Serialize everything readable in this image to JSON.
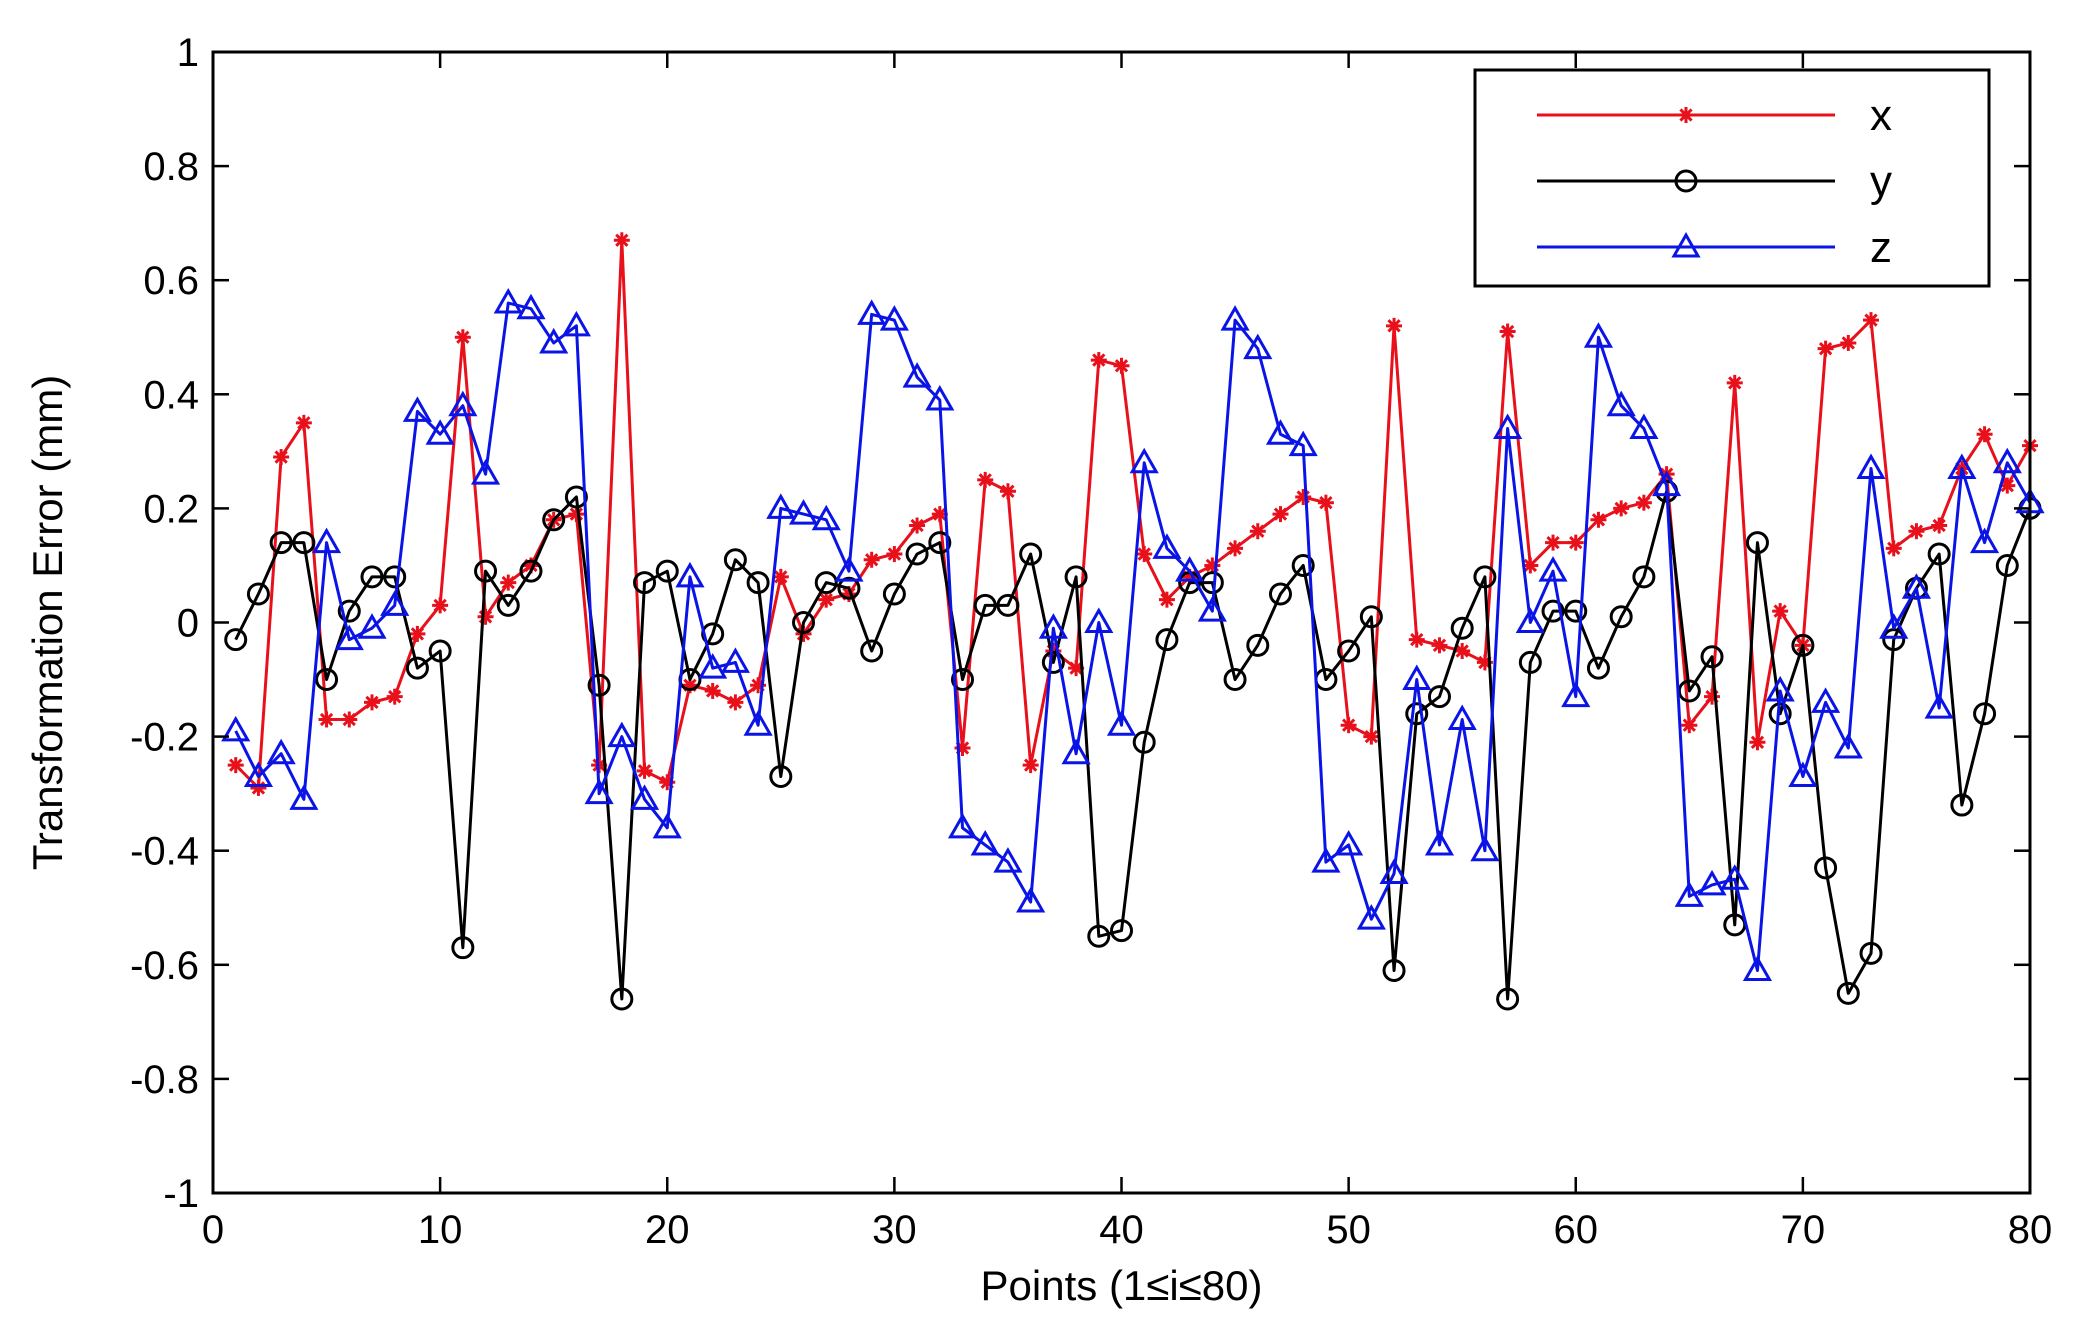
{
  "chart_data": {
    "type": "line",
    "title": "",
    "xlabel": "Points (1≤i≤80)",
    "ylabel": "Transformation Error (mm)",
    "xlim": [
      0,
      80
    ],
    "ylim": [
      -1,
      1
    ],
    "xticks": [
      0,
      10,
      20,
      30,
      40,
      50,
      60,
      70,
      80
    ],
    "yticks": [
      -1,
      -0.8,
      -0.6,
      -0.4,
      -0.2,
      0,
      0.2,
      0.4,
      0.6,
      0.8,
      1
    ],
    "xtick_labels": [
      "0",
      "10",
      "20",
      "30",
      "40",
      "50",
      "60",
      "70",
      "80"
    ],
    "ytick_labels": [
      "-1",
      "-0.8",
      "-0.6",
      "-0.4",
      "-0.2",
      "0",
      "0.2",
      "0.4",
      "0.6",
      "0.8",
      "1"
    ],
    "grid": false,
    "legend_position": "top-right",
    "series": [
      {
        "name": "x",
        "color": "#e8101a",
        "marker": "asterisk",
        "x": [
          1,
          2,
          3,
          4,
          5,
          6,
          7,
          8,
          9,
          10,
          11,
          12,
          13,
          14,
          15,
          16,
          17,
          18,
          19,
          20,
          21,
          22,
          23,
          24,
          25,
          26,
          27,
          28,
          29,
          30,
          31,
          32,
          33,
          34,
          35,
          36,
          37,
          38,
          39,
          40,
          41,
          42,
          43,
          44,
          45,
          46,
          47,
          48,
          49,
          50,
          51,
          52,
          53,
          54,
          55,
          56,
          57,
          58,
          59,
          60,
          61,
          62,
          63,
          64,
          65,
          66,
          67,
          68,
          69,
          70,
          71,
          72,
          73,
          74,
          75,
          76,
          77,
          78,
          79,
          80
        ],
        "values": [
          -0.25,
          -0.29,
          0.29,
          0.35,
          -0.17,
          -0.17,
          -0.14,
          -0.13,
          -0.02,
          0.03,
          0.5,
          0.01,
          0.07,
          0.1,
          0.18,
          0.19,
          -0.25,
          0.67,
          -0.26,
          -0.28,
          -0.11,
          -0.12,
          -0.14,
          -0.11,
          0.08,
          -0.02,
          0.04,
          0.05,
          0.11,
          0.12,
          0.17,
          0.19,
          -0.22,
          0.25,
          0.23,
          -0.25,
          -0.05,
          -0.08,
          0.46,
          0.45,
          0.12,
          0.04,
          0.08,
          0.1,
          0.13,
          0.16,
          0.19,
          0.22,
          0.21,
          -0.18,
          -0.2,
          0.52,
          -0.03,
          -0.04,
          -0.05,
          -0.07,
          0.51,
          0.1,
          0.14,
          0.14,
          0.18,
          0.2,
          0.21,
          0.26,
          -0.18,
          -0.13,
          0.42,
          -0.21,
          0.02,
          -0.04,
          0.48,
          0.49,
          0.53,
          0.13,
          0.16,
          0.17,
          0.27,
          0.33,
          0.24,
          0.31
        ]
      },
      {
        "name": "y",
        "color": "#000000",
        "marker": "circle",
        "x": [
          1,
          2,
          3,
          4,
          5,
          6,
          7,
          8,
          9,
          10,
          11,
          12,
          13,
          14,
          15,
          16,
          17,
          18,
          19,
          20,
          21,
          22,
          23,
          24,
          25,
          26,
          27,
          28,
          29,
          30,
          31,
          32,
          33,
          34,
          35,
          36,
          37,
          38,
          39,
          40,
          41,
          42,
          43,
          44,
          45,
          46,
          47,
          48,
          49,
          50,
          51,
          52,
          53,
          54,
          55,
          56,
          57,
          58,
          59,
          60,
          61,
          62,
          63,
          64,
          65,
          66,
          67,
          68,
          69,
          70,
          71,
          72,
          73,
          74,
          75,
          76,
          77,
          78,
          79,
          80
        ],
        "values": [
          -0.03,
          0.05,
          0.14,
          0.14,
          -0.1,
          0.02,
          0.08,
          0.08,
          -0.08,
          -0.05,
          -0.57,
          0.09,
          0.03,
          0.09,
          0.18,
          0.22,
          -0.11,
          -0.66,
          0.07,
          0.09,
          -0.1,
          -0.02,
          0.11,
          0.07,
          -0.27,
          0.0,
          0.07,
          0.06,
          -0.05,
          0.05,
          0.12,
          0.14,
          -0.1,
          0.03,
          0.03,
          0.12,
          -0.07,
          0.08,
          -0.55,
          -0.54,
          -0.21,
          -0.03,
          0.07,
          0.07,
          -0.1,
          -0.04,
          0.05,
          0.1,
          -0.1,
          -0.05,
          0.01,
          -0.61,
          -0.16,
          -0.13,
          -0.01,
          0.08,
          -0.66,
          -0.07,
          0.02,
          0.02,
          -0.08,
          0.01,
          0.08,
          0.23,
          -0.12,
          -0.06,
          -0.53,
          0.14,
          -0.16,
          -0.04,
          -0.43,
          -0.65,
          -0.58,
          -0.03,
          0.06,
          0.12,
          -0.32,
          -0.16,
          0.1,
          0.2
        ]
      },
      {
        "name": "z",
        "color": "#0a14e6",
        "marker": "triangle",
        "x": [
          1,
          2,
          3,
          4,
          5,
          6,
          7,
          8,
          9,
          10,
          11,
          12,
          13,
          14,
          15,
          16,
          17,
          18,
          19,
          20,
          21,
          22,
          23,
          24,
          25,
          26,
          27,
          28,
          29,
          30,
          31,
          32,
          33,
          34,
          35,
          36,
          37,
          38,
          39,
          40,
          41,
          42,
          43,
          44,
          45,
          46,
          47,
          48,
          49,
          50,
          51,
          52,
          53,
          54,
          55,
          56,
          57,
          58,
          59,
          60,
          61,
          62,
          63,
          64,
          65,
          66,
          67,
          68,
          69,
          70,
          71,
          72,
          73,
          74,
          75,
          76,
          77,
          78,
          79,
          80
        ],
        "values": [
          -0.19,
          -0.27,
          -0.23,
          -0.31,
          0.14,
          -0.03,
          -0.01,
          0.03,
          0.37,
          0.33,
          0.38,
          0.26,
          0.56,
          0.55,
          0.49,
          0.52,
          -0.3,
          -0.2,
          -0.31,
          -0.36,
          0.08,
          -0.08,
          -0.07,
          -0.18,
          0.2,
          0.19,
          0.18,
          0.09,
          0.54,
          0.53,
          0.43,
          0.39,
          -0.36,
          -0.39,
          -0.42,
          -0.49,
          -0.01,
          -0.23,
          0.0,
          -0.18,
          0.28,
          0.13,
          0.09,
          0.02,
          0.53,
          0.48,
          0.33,
          0.31,
          -0.42,
          -0.39,
          -0.52,
          -0.44,
          -0.1,
          -0.39,
          -0.17,
          -0.4,
          0.34,
          0.0,
          0.09,
          -0.13,
          0.5,
          0.38,
          0.34,
          0.24,
          -0.48,
          -0.46,
          -0.45,
          -0.61,
          -0.12,
          -0.27,
          -0.14,
          -0.22,
          0.27,
          -0.01,
          0.06,
          -0.15,
          0.27,
          0.14,
          0.28,
          0.21
        ]
      }
    ]
  }
}
